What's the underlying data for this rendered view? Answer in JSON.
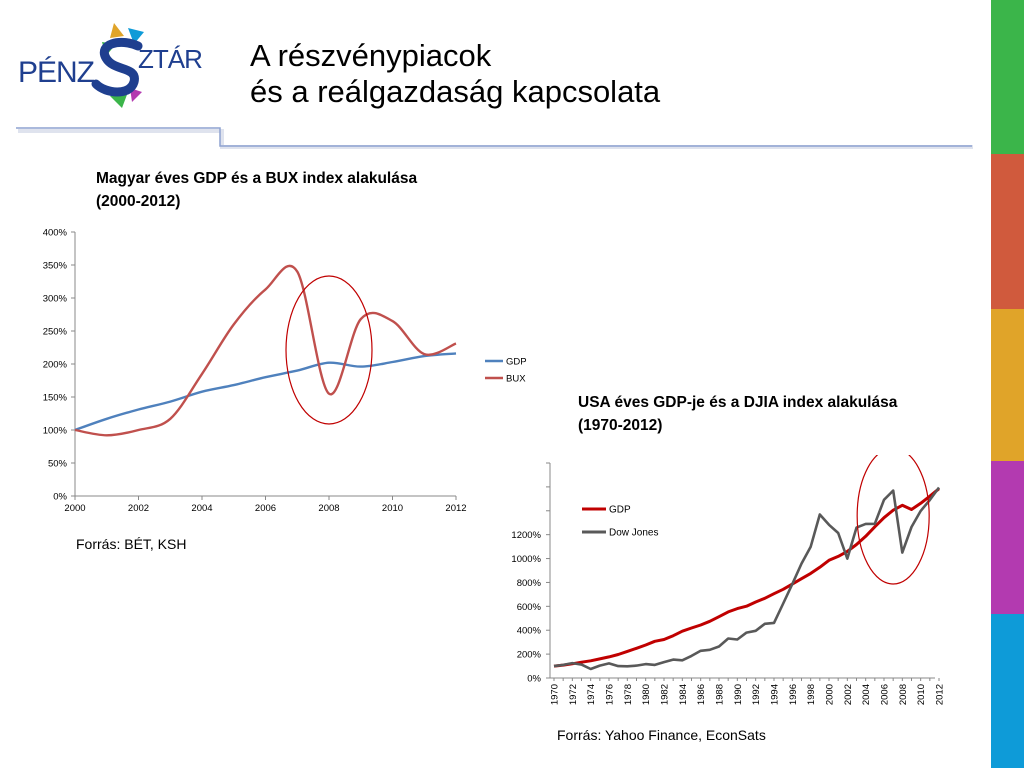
{
  "slide": {
    "logo_text": "PÉNZSZTÁR",
    "title_line1": "A részvénypiacok",
    "title_line2": "és a reálgazdaság kapcsolata"
  },
  "colors": {
    "stripes": [
      "#3bb54a",
      "#d05a3d",
      "#e0a429",
      "#b33ab0",
      "#0e9bd8"
    ],
    "gdp_blue": "#4f81bd",
    "bux_red": "#c0504d",
    "us_gdp_red": "#c00000",
    "dow_gray": "#595959",
    "ellipse": "#c00000",
    "rule": "#8ea2d0"
  },
  "chart_data": [
    {
      "type": "line",
      "title": "Magyar éves GDP és a BUX index alakulása (2000-2012)",
      "title_line1": "Magyar éves GDP és a BUX index alakulása",
      "title_line2": "(2000-2012)",
      "x": [
        2000,
        2001,
        2002,
        2003,
        2004,
        2005,
        2006,
        2007,
        2008,
        2009,
        2010,
        2011,
        2012
      ],
      "x_ticks": [
        "2000",
        "2002",
        "2004",
        "2006",
        "2008",
        "2010",
        "2012"
      ],
      "y_ticks": [
        "0%",
        "50%",
        "100%",
        "150%",
        "200%",
        "250%",
        "300%",
        "350%",
        "400%"
      ],
      "ylim": [
        0,
        400
      ],
      "xlim": [
        2000,
        2012
      ],
      "series": [
        {
          "name": "GDP",
          "values": [
            100,
            117,
            131,
            143,
            158,
            168,
            180,
            190,
            202,
            196,
            203,
            212,
            216
          ]
        },
        {
          "name": "BUX",
          "values": [
            100,
            92,
            100,
            117,
            185,
            260,
            313,
            340,
            155,
            268,
            265,
            215,
            231
          ]
        }
      ],
      "legend": "right",
      "grid": false,
      "highlight_x": 2008,
      "source": "Forrás: BÉT, KSH"
    },
    {
      "type": "line",
      "title": "USA éves GDP-je és a DJIA index alakulása (1970-2012)",
      "title_line1": "USA éves GDP-je és a DJIA index alakulása",
      "title_line2": "(1970-2012)",
      "x": [
        1970,
        1971,
        1972,
        1973,
        1974,
        1975,
        1976,
        1977,
        1978,
        1979,
        1980,
        1981,
        1982,
        1983,
        1984,
        1985,
        1986,
        1987,
        1988,
        1989,
        1990,
        1991,
        1992,
        1993,
        1994,
        1995,
        1996,
        1997,
        1998,
        1999,
        2000,
        2001,
        2002,
        2003,
        2004,
        2005,
        2006,
        2007,
        2008,
        2009,
        2010,
        2011,
        2012
      ],
      "x_ticks": [
        "1970",
        "1972",
        "1974",
        "1976",
        "1978",
        "1980",
        "1982",
        "1984",
        "1986",
        "1988",
        "1990",
        "1992",
        "1994",
        "1996",
        "1998",
        "2000",
        "2002",
        "2004",
        "2006",
        "2008",
        "2010",
        "2012"
      ],
      "y_ticks": [
        "0%",
        "200%",
        "400%",
        "600%",
        "800%",
        "1000%",
        "1200%"
      ],
      "ylim": [
        0,
        1800
      ],
      "xlim": [
        1970,
        2012
      ],
      "series": [
        {
          "name": "GDP",
          "values": [
            100,
            108,
            119,
            132,
            144,
            160,
            177,
            197,
            223,
            249,
            276,
            307,
            322,
            354,
            392,
            419,
            444,
            475,
            513,
            553,
            581,
            601,
            636,
            667,
            706,
            743,
            786,
            831,
            876,
            927,
            985,
            1018,
            1060,
            1118,
            1186,
            1266,
            1342,
            1405,
            1446,
            1411,
            1463,
            1522,
            1585
          ]
        },
        {
          "name": "Dow Jones",
          "values": [
            100,
            110,
            125,
            112,
            75,
            104,
            122,
            100,
            98,
            104,
            116,
            110,
            133,
            154,
            148,
            185,
            228,
            236,
            264,
            331,
            322,
            380,
            395,
            454,
            461,
            624,
            786,
            958,
            1099,
            1369,
            1283,
            1214,
            1000,
            1259,
            1290,
            1291,
            1492,
            1569,
            1050,
            1264,
            1399,
            1490,
            1595
          ]
        }
      ],
      "legend": "top-left",
      "grid": false,
      "highlight_x": 2007,
      "source": "Forrás: Yahoo Finance, EconSats"
    }
  ]
}
